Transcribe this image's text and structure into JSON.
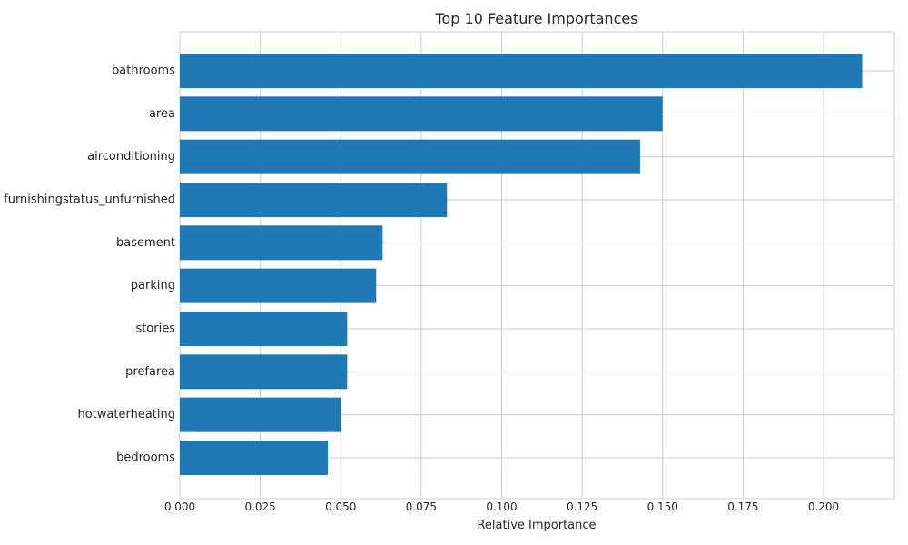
{
  "chart_data": {
    "type": "bar",
    "orientation": "horizontal",
    "title": "Top 10 Feature Importances",
    "xlabel": "Relative Importance",
    "ylabel": "",
    "categories": [
      "bathrooms",
      "area",
      "airconditioning",
      "furnishingstatus_unfurnished",
      "basement",
      "parking",
      "stories",
      "prefarea",
      "hotwaterheating",
      "bedrooms"
    ],
    "values": [
      0.212,
      0.15,
      0.143,
      0.083,
      0.063,
      0.061,
      0.052,
      0.052,
      0.05,
      0.046
    ],
    "xlim": [
      0,
      0.222
    ],
    "xticks": [
      "0.000",
      "0.025",
      "0.050",
      "0.075",
      "0.100",
      "0.125",
      "0.150",
      "0.175",
      "0.200"
    ],
    "grid": true,
    "bar_color": "#1f77b4"
  }
}
